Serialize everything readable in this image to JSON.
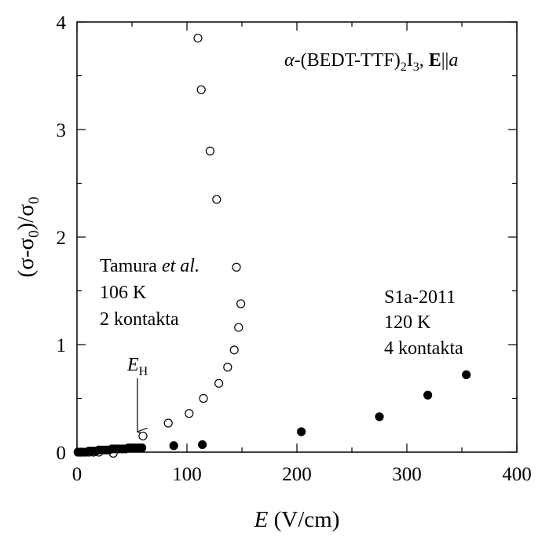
{
  "chart_data": {
    "type": "scatter",
    "title": "",
    "xlim": [
      0,
      400
    ],
    "ylim": [
      0,
      4
    ],
    "x_ticks": [
      0,
      100,
      200,
      300,
      400
    ],
    "y_ticks": [
      0,
      1,
      2,
      3,
      4
    ],
    "x_tick_labels": [
      "0",
      "100",
      "200",
      "300",
      "400"
    ],
    "y_tick_labels": [
      "0",
      "1",
      "2",
      "3",
      "4"
    ],
    "xlabel": {
      "var": "E",
      "unit": " (V/cm)"
    },
    "ylabel": {
      "open": "(σ-σ",
      "sub1": "0",
      "mid": ")/σ",
      "sub2": "0"
    },
    "grid": false,
    "series": [
      {
        "marker": "open-circle",
        "x": [
          1,
          3,
          5,
          8,
          11,
          15,
          20,
          33,
          60,
          83,
          102,
          115,
          129,
          137,
          143,
          147,
          149,
          145,
          127,
          121,
          113,
          110
        ],
        "y": [
          0.0,
          0.0,
          0.0,
          0.0,
          0.0,
          0.0,
          0.0,
          -0.01,
          0.15,
          0.27,
          0.36,
          0.5,
          0.64,
          0.79,
          0.95,
          1.16,
          1.38,
          1.72,
          2.35,
          2.8,
          3.37,
          3.85
        ]
      },
      {
        "marker": "filled-circle",
        "x": [
          1,
          3,
          5,
          8,
          11,
          14,
          17,
          20,
          23,
          26,
          29,
          32,
          35,
          38,
          41,
          44,
          47,
          50,
          53,
          56,
          59,
          88,
          114,
          204,
          275,
          319,
          354
        ],
        "y": [
          0.0,
          0.0,
          0.0,
          0.0,
          0.01,
          0.01,
          0.01,
          0.02,
          0.02,
          0.02,
          0.02,
          0.03,
          0.03,
          0.03,
          0.03,
          0.03,
          0.04,
          0.04,
          0.04,
          0.04,
          0.04,
          0.06,
          0.07,
          0.19,
          0.33,
          0.53,
          0.72
        ]
      }
    ],
    "annotations": {
      "compound": {
        "alpha": "α",
        "dash": "-(BEDT-TTF)",
        "sub2": "2",
        "i": "I",
        "sub3": "3",
        "comma": ", ",
        "bold_e": "E",
        "par": "||",
        "a": "a"
      },
      "tamura": {
        "name": "Tamura ",
        "etal": "et al.",
        "temp": "106 K",
        "contacts": "2 kontakta"
      },
      "sample": {
        "name": "S1a-2011",
        "temp": "120 K",
        "contacts": "4 kontakta"
      },
      "eh_marker": {
        "var": "E",
        "sub": "H",
        "x": 55
      }
    }
  }
}
